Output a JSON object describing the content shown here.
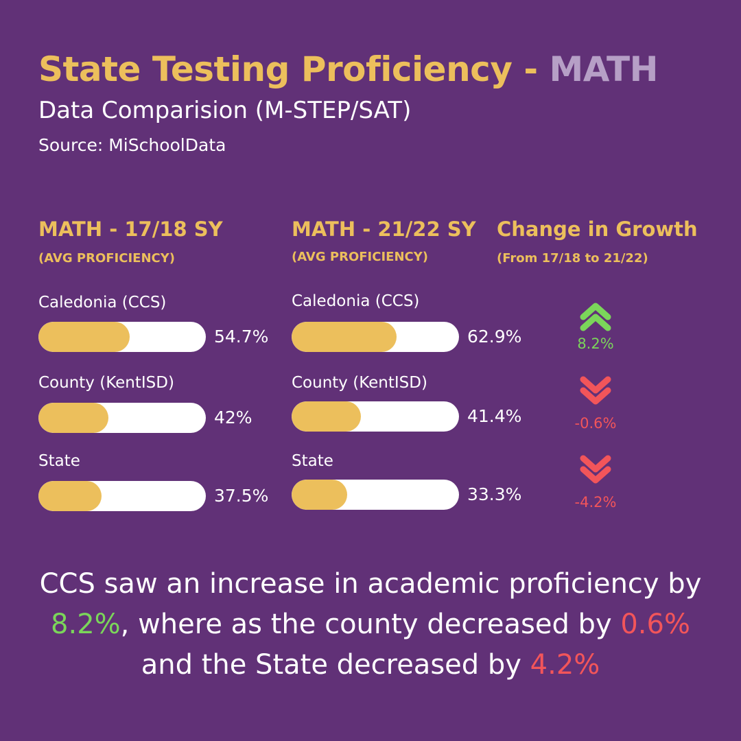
{
  "header": {
    "title_main": "State Testing Proficiency - ",
    "title_subject": "MATH",
    "subtitle": "Data Comparision (M-STEP/SAT)",
    "source": "Source: MiSchoolData"
  },
  "columns": {
    "sy1718": {
      "heading": "MATH - 17/18 SY",
      "sub": "(AVG PROFICIENCY)"
    },
    "sy2122": {
      "heading": "MATH - 21/22 SY",
      "sub": "(AVG PROFICIENCY)"
    },
    "change": {
      "heading": "Change in Growth",
      "sub": "(From 17/18 to 21/22)"
    }
  },
  "chart_data": {
    "type": "bar",
    "categories": [
      "Caledonia (CCS)",
      "County (KentISD)",
      "State"
    ],
    "series": [
      {
        "name": "MATH - 17/18 SY",
        "values": [
          54.7,
          42,
          37.5
        ],
        "labels": [
          "54.7%",
          "42%",
          "37.5%"
        ]
      },
      {
        "name": "MATH - 21/22 SY",
        "values": [
          62.9,
          41.4,
          33.3
        ],
        "labels": [
          "62.9%",
          "41.4%",
          "33.3%"
        ]
      }
    ],
    "change": {
      "values": [
        8.2,
        -0.6,
        -4.2
      ],
      "labels": [
        "8.2%",
        "-0.6%",
        "-4.2%"
      ],
      "directions": [
        "up",
        "down",
        "down"
      ]
    },
    "ylim": [
      0,
      100
    ]
  },
  "summary": {
    "part1": "CCS saw an increase in academic proficiency by ",
    "ccs": "8.2%",
    "part2": ", where as the county decreased by ",
    "county": "0.6%",
    "part3": " and the State decreased by ",
    "state": "4.2%"
  },
  "colors": {
    "background": "#613177",
    "accent_gold": "#ECBF5C",
    "subject_lavender": "#B69FC6",
    "bar_track": "#FFFFFF",
    "positive": "#7BD65A",
    "negative": "#F2555A",
    "text": "#FFFFFF"
  },
  "icons": {
    "up": "double-chevron-up-icon",
    "down": "double-chevron-down-icon"
  }
}
